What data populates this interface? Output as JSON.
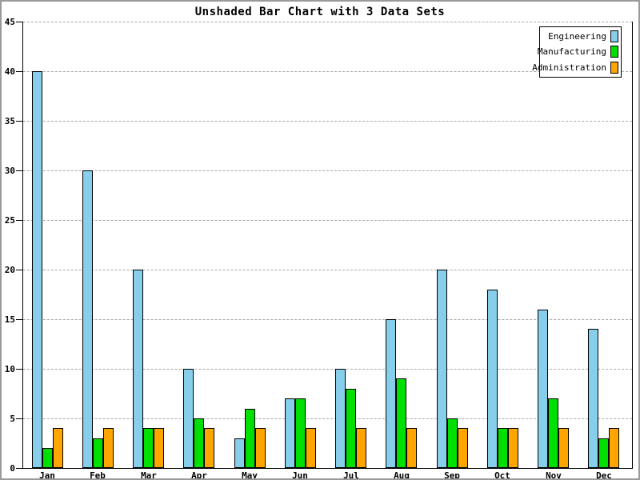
{
  "window": {
    "background": "#ffffff",
    "border_color": "#9a9a9a"
  },
  "chart_data": {
    "type": "bar",
    "title": "Unshaded Bar Chart with 3 Data Sets",
    "categories": [
      "Jan",
      "Feb",
      "Mar",
      "Apr",
      "May",
      "Jun",
      "Jul",
      "Aug",
      "Sep",
      "Oct",
      "Nov",
      "Dec"
    ],
    "series": [
      {
        "name": "Engineering",
        "color": "#87CEEB",
        "values": [
          40,
          30,
          20,
          10,
          3,
          7,
          10,
          15,
          20,
          18,
          16,
          14
        ]
      },
      {
        "name": "Manufacturing",
        "color": "#00E000",
        "values": [
          2,
          3,
          4,
          5,
          6,
          7,
          8,
          9,
          5,
          4,
          7,
          3
        ]
      },
      {
        "name": "Administration",
        "color": "#FFA500",
        "values": [
          4,
          4,
          4,
          4,
          4,
          4,
          4,
          4,
          4,
          4,
          4,
          4
        ]
      }
    ],
    "xlabel": "",
    "ylabel": "",
    "ylim": [
      0,
      45
    ],
    "ytick_step": 5,
    "ytick_labels": [
      "0",
      "5",
      "10",
      "15",
      "20",
      "25",
      "30",
      "35",
      "40",
      "45"
    ],
    "grid": true,
    "gridline_color": "#aaaaaa",
    "bar_border_color": "#000000",
    "axis_color": "#000000",
    "legend_position": "top-right",
    "legend_swatch_side": "right"
  }
}
